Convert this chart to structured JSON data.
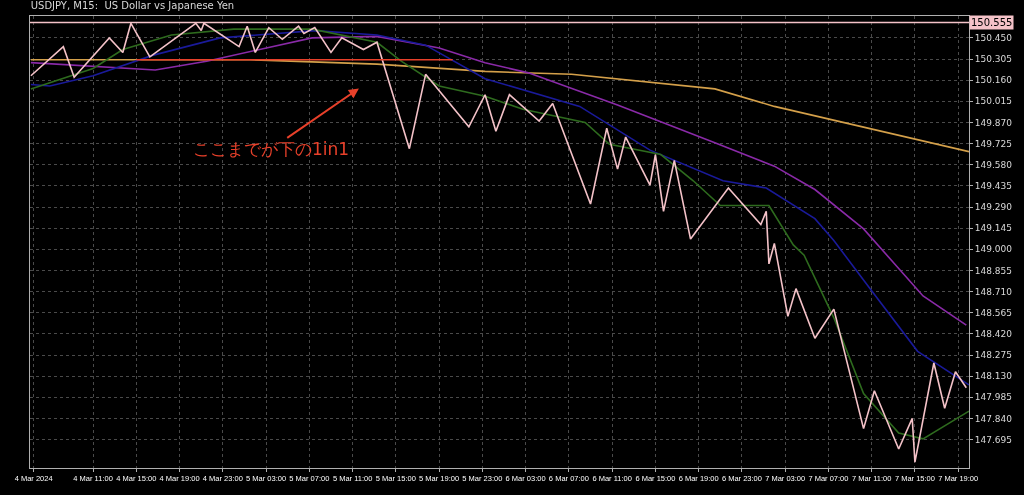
{
  "chart_data": {
    "type": "line",
    "title": "USDJPY, M15:  US Dollar vs Japanese Yen",
    "xlim": [
      "2024-03-04T05:10",
      "2024-03-07T20:00"
    ],
    "xticks": [
      {
        "value": "2024-03-04T05:30",
        "label": "4 Mar 2024"
      },
      {
        "value": "2024-03-04T11:00",
        "label": "4 Mar 11:00"
      },
      {
        "value": "2024-03-04T15:00",
        "label": "4 Mar 15:00"
      },
      {
        "value": "2024-03-04T19:00",
        "label": "4 Mar 19:00"
      },
      {
        "value": "2024-03-04T23:00",
        "label": "4 Mar 23:00"
      },
      {
        "value": "2024-03-05T03:00",
        "label": "5 Mar 03:00"
      },
      {
        "value": "2024-03-05T07:00",
        "label": "5 Mar 07:00"
      },
      {
        "value": "2024-03-05T11:00",
        "label": "5 Mar 11:00"
      },
      {
        "value": "2024-03-05T15:00",
        "label": "5 Mar 15:00"
      },
      {
        "value": "2024-03-05T19:00",
        "label": "5 Mar 19:00"
      },
      {
        "value": "2024-03-05T23:00",
        "label": "5 Mar 23:00"
      },
      {
        "value": "2024-03-06T03:00",
        "label": "6 Mar 03:00"
      },
      {
        "value": "2024-03-06T07:00",
        "label": "6 Mar 07:00"
      },
      {
        "value": "2024-03-06T11:00",
        "label": "6 Mar 11:00"
      },
      {
        "value": "2024-03-06T15:00",
        "label": "6 Mar 15:00"
      },
      {
        "value": "2024-03-06T19:00",
        "label": "6 Mar 19:00"
      },
      {
        "value": "2024-03-06T23:00",
        "label": "6 Mar 23:00"
      },
      {
        "value": "2024-03-07T03:00",
        "label": "7 Mar 03:00"
      },
      {
        "value": "2024-03-07T07:00",
        "label": "7 Mar 07:00"
      },
      {
        "value": "2024-03-07T11:00",
        "label": "7 Mar 11:00"
      },
      {
        "value": "2024-03-07T15:00",
        "label": "7 Mar 15:00"
      },
      {
        "value": "2024-03-07T19:00",
        "label": "7 Mar 19:00"
      }
    ],
    "ylim": [
      147.5,
      150.6
    ],
    "yticks": [
      {
        "value": 147.695,
        "label": "147.695"
      },
      {
        "value": 147.84,
        "label": "147.840"
      },
      {
        "value": 147.985,
        "label": "147.985"
      },
      {
        "value": 148.13,
        "label": "148.130"
      },
      {
        "value": 148.275,
        "label": "148.275"
      },
      {
        "value": 148.42,
        "label": "148.420"
      },
      {
        "value": 148.565,
        "label": "148.565"
      },
      {
        "value": 148.71,
        "label": "148.710"
      },
      {
        "value": 148.855,
        "label": "148.855"
      },
      {
        "value": 149.0,
        "label": "149.000"
      },
      {
        "value": 149.145,
        "label": "149.145"
      },
      {
        "value": 149.29,
        "label": "149.290"
      },
      {
        "value": 149.435,
        "label": "149.435"
      },
      {
        "value": 149.58,
        "label": "149.580"
      },
      {
        "value": 149.725,
        "label": "149.725"
      },
      {
        "value": 149.87,
        "label": "149.870"
      },
      {
        "value": 150.015,
        "label": "150.015"
      },
      {
        "value": 150.16,
        "label": "150.160"
      },
      {
        "value": 150.305,
        "label": "150.305"
      },
      {
        "value": 150.45,
        "label": "150.450"
      }
    ],
    "grid": true,
    "marker": "none",
    "line_style": "solid",
    "ref_lines": [
      {
        "axis": "y",
        "value": 150.555,
        "label": "150.555",
        "color": "#f4c2c8"
      }
    ],
    "annotations": [
      "ここまでが下の1in1"
    ],
    "series": [
      {
        "color": "#d4a04a",
        "x": [
          "2024-03-04T05:15",
          "2024-03-05T01:30",
          "2024-03-05T13:15",
          "2024-03-05T23:15",
          "2024-03-06T07:15",
          "2024-03-06T20:30",
          "2024-03-07T02:00",
          "2024-03-07T20:00"
        ],
        "values": [
          150.3,
          150.3,
          150.27,
          150.22,
          150.2,
          150.1,
          149.98,
          149.67
        ]
      },
      {
        "color": "#8a2aa8",
        "x": [
          "2024-03-04T05:15",
          "2024-03-04T16:45",
          "2024-03-04T21:30",
          "2024-03-05T07:15",
          "2024-03-05T13:15",
          "2024-03-05T19:00",
          "2024-03-05T23:15",
          "2024-03-06T03:15",
          "2024-03-06T11:30",
          "2024-03-06T20:30",
          "2024-03-07T02:00",
          "2024-03-07T05:45",
          "2024-03-07T10:15",
          "2024-03-07T15:45",
          "2024-03-07T19:45"
        ],
        "values": [
          150.28,
          150.23,
          150.29,
          150.45,
          150.46,
          150.38,
          150.28,
          150.21,
          149.99,
          149.73,
          149.57,
          149.41,
          149.14,
          148.68,
          148.48
        ]
      },
      {
        "color": "#1a1a9a",
        "x": [
          "2024-03-04T05:15",
          "2024-03-04T07:00",
          "2024-03-04T11:00",
          "2024-03-04T16:30",
          "2024-03-04T22:45",
          "2024-03-05T07:30",
          "2024-03-05T13:15",
          "2024-03-05T17:45",
          "2024-03-05T23:15",
          "2024-03-06T08:00",
          "2024-03-06T14:30",
          "2024-03-06T21:15",
          "2024-03-07T01:15",
          "2024-03-07T05:45",
          "2024-03-07T07:30",
          "2024-03-07T10:45",
          "2024-03-07T15:15",
          "2024-03-07T20:00"
        ],
        "values": [
          150.13,
          150.12,
          150.19,
          150.33,
          150.45,
          150.5,
          150.47,
          150.4,
          150.17,
          149.98,
          149.68,
          149.47,
          149.42,
          149.21,
          149.06,
          148.74,
          148.3,
          148.07
        ]
      },
      {
        "color": "#2e6b1e",
        "x": [
          "2024-03-04T05:15",
          "2024-03-04T11:00",
          "2024-03-04T13:45",
          "2024-03-04T18:15",
          "2024-03-05T00:00",
          "2024-03-05T07:15",
          "2024-03-05T13:15",
          "2024-03-05T15:30",
          "2024-03-05T19:00",
          "2024-03-05T23:15",
          "2024-03-06T02:45",
          "2024-03-06T08:30",
          "2024-03-06T10:45",
          "2024-03-06T15:30",
          "2024-03-06T18:30",
          "2024-03-06T21:00",
          "2024-03-07T01:30",
          "2024-03-07T03:45",
          "2024-03-07T04:45",
          "2024-03-07T07:30",
          "2024-03-07T10:15",
          "2024-03-07T13:30",
          "2024-03-07T15:45",
          "2024-03-07T20:00"
        ],
        "values": [
          150.1,
          150.24,
          150.37,
          150.47,
          150.51,
          150.51,
          150.42,
          150.29,
          150.12,
          150.05,
          149.96,
          149.87,
          149.72,
          149.65,
          149.47,
          149.3,
          149.3,
          149.03,
          148.96,
          148.53,
          148.01,
          147.74,
          147.7,
          147.89
        ]
      },
      {
        "color": "#f4c2c8",
        "x": [
          "2024-03-04T05:15",
          "2024-03-04T08:15",
          "2024-03-04T09:15",
          "2024-03-04T12:30",
          "2024-03-04T13:45",
          "2024-03-04T14:30",
          "2024-03-04T16:15",
          "2024-03-04T20:30",
          "2024-03-04T21:00",
          "2024-03-04T21:15",
          "2024-03-05T00:30",
          "2024-03-05T01:15",
          "2024-03-05T02:00",
          "2024-03-05T03:15",
          "2024-03-05T04:30",
          "2024-03-05T06:00",
          "2024-03-05T06:30",
          "2024-03-05T07:30",
          "2024-03-05T09:00",
          "2024-03-05T10:00",
          "2024-03-05T12:00",
          "2024-03-05T13:15",
          "2024-03-05T16:15",
          "2024-03-05T17:45",
          "2024-03-05T21:45",
          "2024-03-05T23:15",
          "2024-03-06T00:15",
          "2024-03-06T01:30",
          "2024-03-06T04:15",
          "2024-03-06T05:30",
          "2024-03-06T09:00",
          "2024-03-06T10:30",
          "2024-03-06T11:30",
          "2024-03-06T12:15",
          "2024-03-06T14:30",
          "2024-03-06T15:00",
          "2024-03-06T15:45",
          "2024-03-06T16:45",
          "2024-03-06T18:15",
          "2024-03-06T21:45",
          "2024-03-07T00:45",
          "2024-03-07T01:15",
          "2024-03-07T01:30",
          "2024-03-07T02:00",
          "2024-03-07T03:15",
          "2024-03-07T04:00",
          "2024-03-07T05:45",
          "2024-03-07T07:30",
          "2024-03-07T10:15",
          "2024-03-07T11:15",
          "2024-03-07T13:30",
          "2024-03-07T14:45",
          "2024-03-07T15:00",
          "2024-03-07T16:45",
          "2024-03-07T17:45",
          "2024-03-07T18:45",
          "2024-03-07T19:45"
        ],
        "values": [
          150.19,
          150.39,
          150.18,
          150.45,
          150.35,
          150.55,
          150.32,
          150.55,
          150.5,
          150.55,
          150.39,
          150.53,
          150.35,
          150.52,
          150.44,
          150.53,
          150.48,
          150.52,
          150.35,
          150.45,
          150.37,
          150.42,
          149.69,
          150.2,
          149.84,
          150.06,
          149.81,
          150.06,
          149.88,
          150.0,
          149.31,
          149.83,
          149.55,
          149.77,
          149.44,
          149.65,
          149.26,
          149.61,
          149.07,
          149.42,
          149.17,
          149.26,
          148.9,
          149.04,
          148.54,
          148.73,
          148.39,
          148.59,
          147.77,
          148.03,
          147.63,
          147.84,
          147.54,
          148.22,
          147.91,
          148.16,
          148.05
        ]
      },
      {
        "color": "#e8402a",
        "x": [
          "2024-03-04T15:00",
          "2024-03-05T20:15"
        ],
        "values": [
          150.3,
          150.3
        ]
      }
    ]
  }
}
